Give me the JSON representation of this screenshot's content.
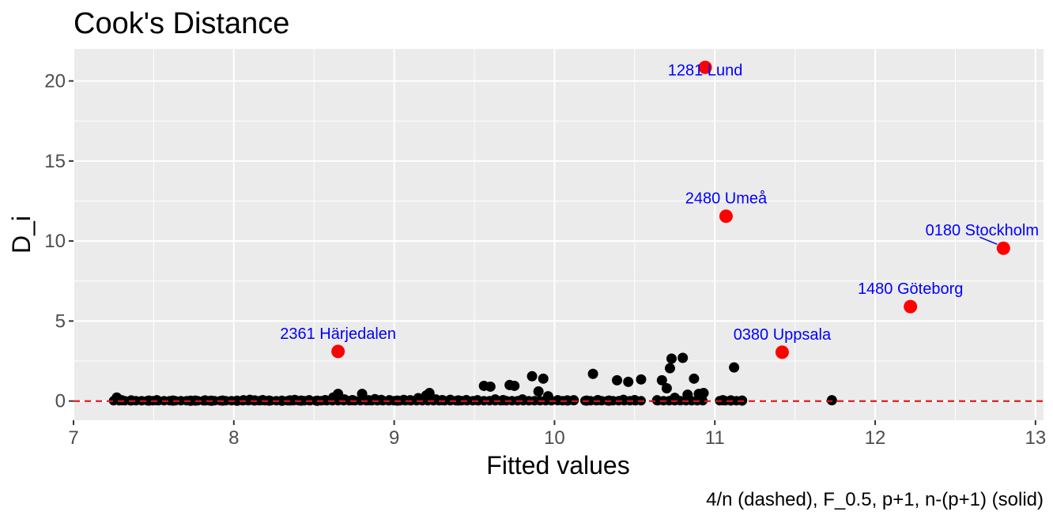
{
  "chart_data": {
    "type": "scatter",
    "title": "Cook's Distance",
    "xlabel": "Fitted values",
    "ylabel": "D_i",
    "caption": "4/n (dashed), F_0.5, p+1, n-(p+1) (solid)",
    "xlim": [
      7,
      13.05
    ],
    "ylim": [
      -1.2,
      22
    ],
    "x_ticks": [
      7,
      8,
      9,
      10,
      11,
      12,
      13
    ],
    "y_ticks": [
      0,
      5,
      10,
      15,
      20
    ],
    "grid": true,
    "reference_lines": [
      {
        "y": 0.0,
        "style": "dashed",
        "color": "#e31a1c"
      }
    ],
    "colors": {
      "panel": "#ebebeb",
      "grid": "#ffffff",
      "normal_point": "#000000",
      "influential_point": "#ff0000",
      "annotation": "#0000ff"
    },
    "influential_points": [
      {
        "label": "1281 Lund",
        "x": 10.94,
        "y": 20.85
      },
      {
        "label": "2480 Umeå",
        "x": 11.07,
        "y": 11.55
      },
      {
        "label": "0180 Stockholm",
        "x": 12.8,
        "y": 9.55
      },
      {
        "label": "1480 Göteborg",
        "x": 12.22,
        "y": 5.9
      },
      {
        "label": "0380 Uppsala",
        "x": 11.42,
        "y": 3.05
      },
      {
        "label": "2361 Härjedalen",
        "x": 8.65,
        "y": 3.1
      }
    ],
    "points": [
      [
        7.27,
        0.22
      ],
      [
        7.3,
        0.05
      ],
      [
        7.36,
        0.04
      ],
      [
        7.47,
        0.03
      ],
      [
        7.52,
        0.05
      ],
      [
        7.62,
        0.03
      ],
      [
        7.73,
        0.02
      ],
      [
        7.76,
        0.03
      ],
      [
        7.82,
        0.04
      ],
      [
        7.86,
        0.02
      ],
      [
        7.93,
        0.03
      ],
      [
        8.02,
        0.02
      ],
      [
        8.06,
        0.05
      ],
      [
        8.1,
        0.08
      ],
      [
        8.13,
        0.04
      ],
      [
        8.18,
        0.06
      ],
      [
        8.22,
        0.03
      ],
      [
        8.3,
        0.02
      ],
      [
        8.35,
        0.04
      ],
      [
        8.38,
        0.07
      ],
      [
        8.42,
        0.03
      ],
      [
        8.47,
        0.05
      ],
      [
        8.52,
        0.02
      ],
      [
        8.57,
        0.06
      ],
      [
        8.62,
        0.22
      ],
      [
        8.65,
        0.45
      ],
      [
        8.69,
        0.1
      ],
      [
        8.74,
        0.06
      ],
      [
        8.8,
        0.45
      ],
      [
        8.84,
        0.05
      ],
      [
        8.88,
        0.12
      ],
      [
        8.92,
        0.07
      ],
      [
        8.97,
        0.05
      ],
      [
        9.02,
        0.03
      ],
      [
        9.06,
        0.07
      ],
      [
        9.1,
        0.05
      ],
      [
        9.15,
        0.18
      ],
      [
        9.2,
        0.35
      ],
      [
        9.22,
        0.5
      ],
      [
        9.26,
        0.1
      ],
      [
        9.3,
        0.06
      ],
      [
        9.35,
        0.08
      ],
      [
        9.4,
        0.04
      ],
      [
        9.45,
        0.06
      ],
      [
        9.52,
        0.05
      ],
      [
        9.56,
        0.95
      ],
      [
        9.6,
        0.9
      ],
      [
        9.63,
        0.1
      ],
      [
        9.68,
        0.06
      ],
      [
        9.72,
        1.0
      ],
      [
        9.75,
        0.95
      ],
      [
        9.8,
        0.1
      ],
      [
        9.86,
        1.55
      ],
      [
        9.9,
        0.6
      ],
      [
        9.93,
        1.4
      ],
      [
        9.96,
        0.3
      ],
      [
        10.02,
        0.05
      ],
      [
        10.08,
        0.04
      ],
      [
        10.12,
        0.05
      ],
      [
        10.2,
        0.03
      ],
      [
        10.24,
        1.7
      ],
      [
        10.27,
        0.06
      ],
      [
        10.34,
        0.03
      ],
      [
        10.39,
        1.3
      ],
      [
        10.43,
        0.08
      ],
      [
        10.46,
        1.2
      ],
      [
        10.5,
        0.06
      ],
      [
        10.54,
        1.35
      ],
      [
        10.64,
        0.05
      ],
      [
        10.67,
        1.3
      ],
      [
        10.7,
        0.8
      ],
      [
        10.72,
        2.05
      ],
      [
        10.73,
        2.65
      ],
      [
        10.75,
        0.2
      ],
      [
        10.8,
        2.7
      ],
      [
        10.83,
        0.4
      ],
      [
        10.87,
        1.4
      ],
      [
        10.9,
        0.45
      ],
      [
        10.93,
        0.5
      ],
      [
        11.05,
        0.05
      ],
      [
        11.1,
        0.04
      ],
      [
        11.12,
        2.1
      ],
      [
        11.17,
        0.03
      ],
      [
        11.73,
        0.05
      ]
    ]
  }
}
